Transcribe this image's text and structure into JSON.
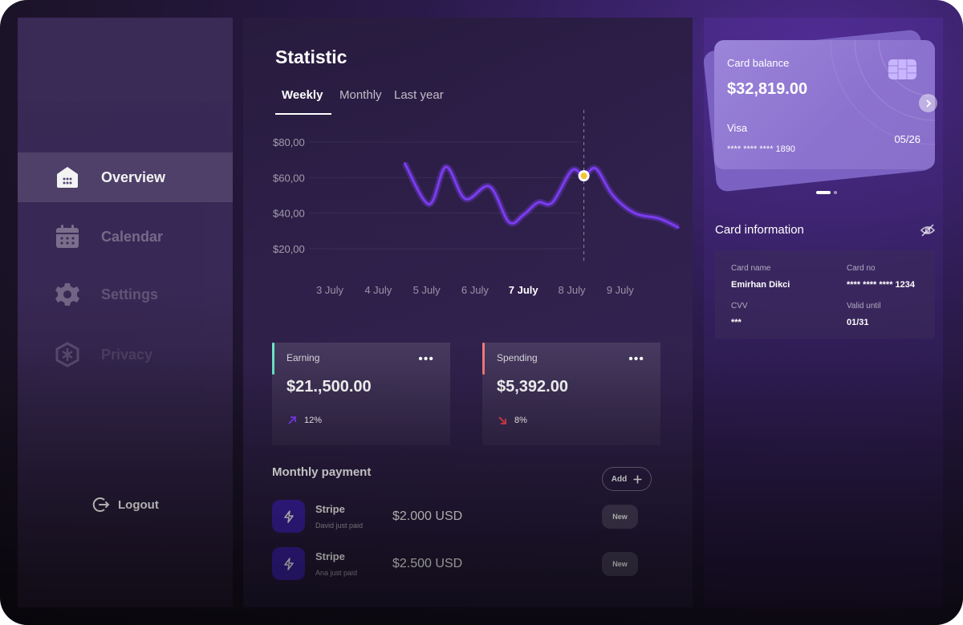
{
  "sidebar": {
    "items": [
      {
        "label": "Overview",
        "icon": "home-icon"
      },
      {
        "label": "Calendar",
        "icon": "calendar-icon"
      },
      {
        "label": "Settings",
        "icon": "gear-icon"
      },
      {
        "label": "Privacy",
        "icon": "shield-icon"
      }
    ],
    "logout_label": "Logout"
  },
  "main": {
    "title": "Statistic",
    "tabs": [
      "Weekly",
      "Monthly",
      "Last year"
    ],
    "active_tab": "Weekly"
  },
  "chart_data": {
    "type": "line",
    "title": "",
    "xlabel": "",
    "ylabel": "",
    "y_tick_labels": [
      "$80,00",
      "$60,00",
      "$40,00",
      "$20,00"
    ],
    "y_ticks": [
      80,
      60,
      40,
      20
    ],
    "ylim": [
      20,
      80
    ],
    "categories": [
      "3 July",
      "4 July",
      "5 July",
      "6 July",
      "7 July",
      "8 July",
      "9 July"
    ],
    "highlighted_category": "7 July",
    "series": [
      {
        "color": "#7b3cf0",
        "points": [
          [
            2.55,
            68
          ],
          [
            3.05,
            45
          ],
          [
            3.4,
            66
          ],
          [
            3.8,
            48
          ],
          [
            4.3,
            55
          ],
          [
            4.7,
            35
          ],
          [
            5.0,
            39
          ],
          [
            5.3,
            46
          ],
          [
            5.6,
            46
          ],
          [
            6.0,
            64
          ],
          [
            6.25,
            61
          ],
          [
            6.5,
            65
          ],
          [
            6.85,
            50
          ],
          [
            7.3,
            40
          ],
          [
            7.8,
            37
          ],
          [
            8.2,
            32
          ]
        ]
      }
    ],
    "grid": true,
    "highlight_point": {
      "x": 6.25,
      "y": 61
    }
  },
  "stats": {
    "earning": {
      "label": "Earning",
      "value": "$21.,500.00",
      "change": "12%",
      "accent": "#6ee7c8"
    },
    "spending": {
      "label": "Spending",
      "value": "$5,392.00",
      "change": "8%",
      "accent": "#f27a7a"
    },
    "menu_glyph": "•••"
  },
  "payments": {
    "title": "Monthly payment",
    "add_label": "Add",
    "rows": [
      {
        "name": "Stripe",
        "sub": "David just paid",
        "amount": "$2.000 USD",
        "badge": "New"
      },
      {
        "name": "Stripe",
        "sub": "Ana just paid",
        "amount": "$2.500 USD",
        "badge": "New"
      }
    ]
  },
  "card": {
    "balance_label": "Card balance",
    "balance": "$32,819.00",
    "type": "Visa",
    "number": "**** **** **** 1890",
    "expiry": "05/26"
  },
  "card_info": {
    "title": "Card information",
    "name_label": "Card name",
    "name": "Emirhan Dikci",
    "number_label": "Card no",
    "number": "**** **** **** 1234",
    "cvv_label": "CVV",
    "cvv": "***",
    "valid_label": "Valid until",
    "valid": "01/31"
  }
}
